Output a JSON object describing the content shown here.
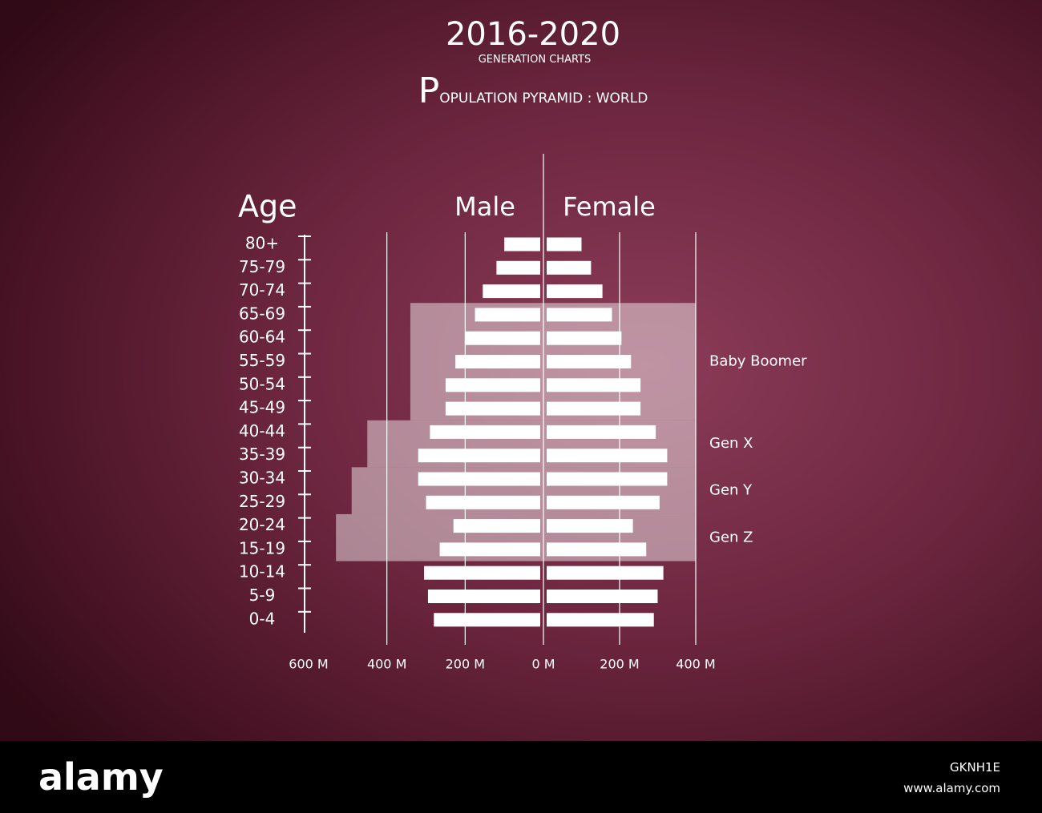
{
  "chart_data": {
    "type": "population_pyramid",
    "title": "2016-2020",
    "subtitle": "GENERATION CHARTS",
    "heading": "POPULATION PYRAMID : WORLD",
    "y_label": "Age",
    "categories": [
      "80+",
      "75-79",
      "70-74",
      "65-69",
      "60-64",
      "55-59",
      "50-54",
      "45-49",
      "40-44",
      "35-39",
      "30-34",
      "25-29",
      "20-24",
      "15-19",
      "10-14",
      "5-9",
      "0-4"
    ],
    "series": [
      {
        "name": "Male",
        "color": "#ffffff",
        "values": [
          100,
          120,
          155,
          175,
          200,
          225,
          250,
          250,
          290,
          320,
          320,
          300,
          230,
          265,
          305,
          295,
          280
        ]
      },
      {
        "name": "Female",
        "color": "#ffffff",
        "values": [
          100,
          125,
          155,
          180,
          205,
          230,
          255,
          255,
          295,
          325,
          325,
          305,
          235,
          270,
          315,
          300,
          290
        ]
      }
    ],
    "xlim_left": [
      0,
      600
    ],
    "xticks_left": [
      {
        "value": 600,
        "label": "600 M"
      },
      {
        "value": 400,
        "label": "400 M"
      },
      {
        "value": 200,
        "label": "200 M"
      },
      {
        "value": 0,
        "label": "0 M"
      }
    ],
    "xlim_right": [
      0,
      400
    ],
    "xticks_right": [
      {
        "value": 200,
        "label": "200 M"
      },
      {
        "value": 400,
        "label": "400 M"
      }
    ],
    "grid": true,
    "bands": [
      {
        "label": "Baby Boomer",
        "start": "65-69",
        "end": "45-49",
        "left": 340,
        "right": 400
      },
      {
        "label": "Gen X",
        "start": "40-44",
        "end": "35-39",
        "left": 450,
        "right": 400
      },
      {
        "label": "Gen Y",
        "start": "30-34",
        "end": "25-29",
        "left": 490,
        "right": 400
      },
      {
        "label": "Gen Z",
        "start": "20-24",
        "end": "15-19",
        "left": 530,
        "right": 400
      }
    ]
  },
  "footer": {
    "logo": "alamy",
    "image_id": "GKNH1E",
    "url": "www.alamy.com"
  }
}
